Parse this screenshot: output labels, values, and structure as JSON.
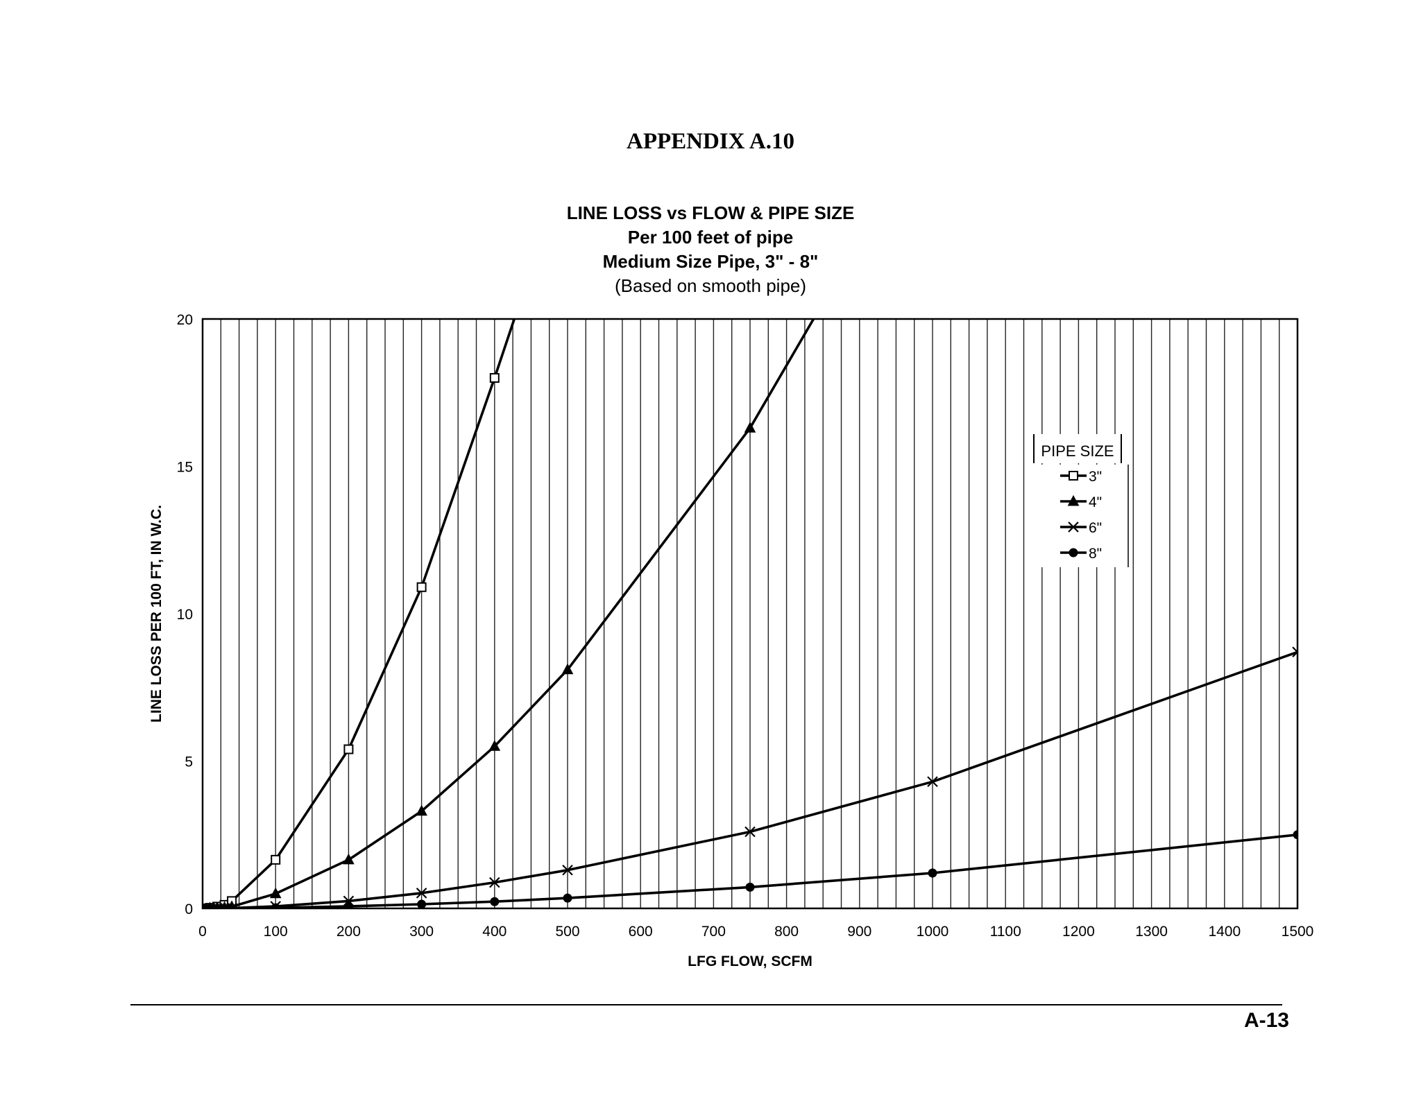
{
  "page": {
    "appendix_title": "APPENDIX A.10",
    "page_number": "A-13"
  },
  "chart_data": {
    "type": "line",
    "title": "LINE LOSS vs FLOW & PIPE SIZE",
    "subtitle_lines": [
      "Per 100 feet of pipe",
      "Medium Size Pipe, 3\" - 8\"",
      "(Based on smooth pipe)"
    ],
    "xlabel": "LFG FLOW, SCFM",
    "ylabel": "LINE LOSS PER 100 FT, IN W.C.",
    "xlim": [
      0,
      1500
    ],
    "ylim": [
      0,
      20
    ],
    "x_ticks": [
      0,
      100,
      200,
      300,
      400,
      500,
      600,
      700,
      800,
      900,
      1000,
      1100,
      1200,
      1300,
      1400,
      1500
    ],
    "y_ticks": [
      0,
      5,
      10,
      15,
      20
    ],
    "grid": "vertical",
    "legend_title": "PIPE SIZE",
    "legend_position": "right",
    "series": [
      {
        "name": "3\"",
        "marker": "open-square",
        "points": [
          [
            0,
            0
          ],
          [
            10,
            0.02
          ],
          [
            20,
            0.06
          ],
          [
            30,
            0.12
          ],
          [
            40,
            0.25
          ],
          [
            100,
            1.65
          ],
          [
            200,
            5.4
          ],
          [
            300,
            10.9
          ],
          [
            400,
            18.0
          ],
          [
            427,
            20.0
          ]
        ],
        "marked": [
          [
            0,
            0
          ],
          [
            10,
            0.02
          ],
          [
            20,
            0.06
          ],
          [
            30,
            0.12
          ],
          [
            40,
            0.25
          ],
          [
            100,
            1.65
          ],
          [
            200,
            5.4
          ],
          [
            300,
            10.9
          ],
          [
            400,
            18.0
          ]
        ]
      },
      {
        "name": "4\"",
        "marker": "filled-triangle",
        "points": [
          [
            0,
            0
          ],
          [
            10,
            0.01
          ],
          [
            20,
            0.02
          ],
          [
            30,
            0.03
          ],
          [
            40,
            0.06
          ],
          [
            100,
            0.5
          ],
          [
            200,
            1.65
          ],
          [
            300,
            3.3
          ],
          [
            400,
            5.5
          ],
          [
            500,
            8.1
          ],
          [
            750,
            16.3
          ],
          [
            837,
            20.0
          ]
        ],
        "marked": [
          [
            0,
            0
          ],
          [
            10,
            0.01
          ],
          [
            20,
            0.02
          ],
          [
            30,
            0.03
          ],
          [
            40,
            0.06
          ],
          [
            100,
            0.5
          ],
          [
            200,
            1.65
          ],
          [
            300,
            3.3
          ],
          [
            400,
            5.5
          ],
          [
            500,
            8.1
          ],
          [
            750,
            16.3
          ]
        ]
      },
      {
        "name": "6\"",
        "marker": "x",
        "points": [
          [
            0,
            0
          ],
          [
            10,
            0
          ],
          [
            20,
            0
          ],
          [
            30,
            0
          ],
          [
            40,
            0.01
          ],
          [
            100,
            0.07
          ],
          [
            200,
            0.25
          ],
          [
            300,
            0.52
          ],
          [
            400,
            0.88
          ],
          [
            500,
            1.3
          ],
          [
            750,
            2.6
          ],
          [
            1000,
            4.3
          ],
          [
            1500,
            8.7
          ]
        ],
        "marked": [
          [
            0,
            0
          ],
          [
            10,
            0
          ],
          [
            20,
            0
          ],
          [
            30,
            0
          ],
          [
            40,
            0.01
          ],
          [
            100,
            0.07
          ],
          [
            200,
            0.25
          ],
          [
            300,
            0.52
          ],
          [
            400,
            0.88
          ],
          [
            500,
            1.3
          ],
          [
            750,
            2.6
          ],
          [
            1000,
            4.3
          ],
          [
            1500,
            8.7
          ]
        ]
      },
      {
        "name": "8\"",
        "marker": "filled-circle",
        "points": [
          [
            0,
            0
          ],
          [
            10,
            0
          ],
          [
            20,
            0
          ],
          [
            30,
            0
          ],
          [
            40,
            0
          ],
          [
            100,
            0.02
          ],
          [
            200,
            0.07
          ],
          [
            300,
            0.14
          ],
          [
            400,
            0.23
          ],
          [
            500,
            0.35
          ],
          [
            750,
            0.72
          ],
          [
            1000,
            1.2
          ],
          [
            1500,
            2.5
          ]
        ],
        "marked": [
          [
            0,
            0
          ],
          [
            10,
            0
          ],
          [
            20,
            0
          ],
          [
            30,
            0
          ],
          [
            40,
            0
          ],
          [
            100,
            0.02
          ],
          [
            200,
            0.07
          ],
          [
            300,
            0.14
          ],
          [
            400,
            0.23
          ],
          [
            500,
            0.35
          ],
          [
            750,
            0.72
          ],
          [
            1000,
            1.2
          ],
          [
            1500,
            2.5
          ]
        ]
      }
    ]
  }
}
